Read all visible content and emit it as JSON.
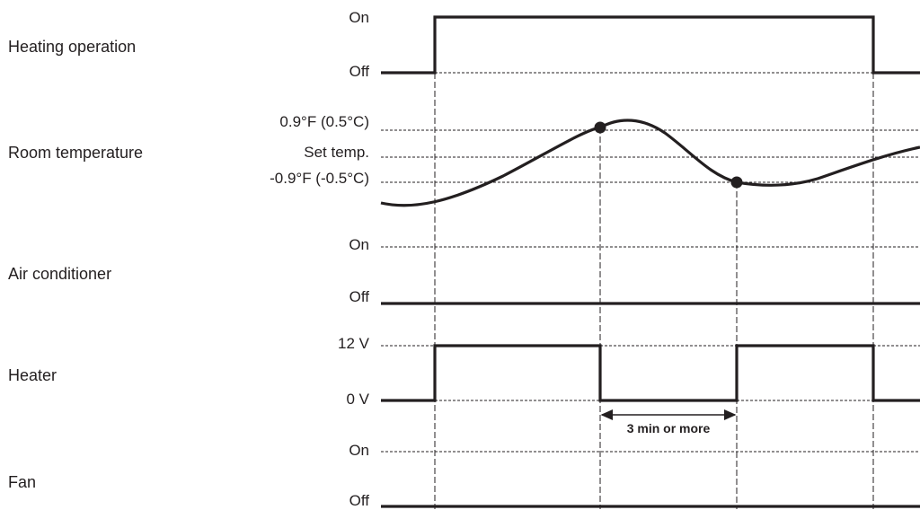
{
  "rows": {
    "heating_operation": {
      "label": "Heating operation",
      "levels": {
        "high": "On",
        "low": "Off"
      }
    },
    "room_temperature": {
      "label": "Room temperature",
      "levels": {
        "upper": "0.9°F (0.5°C)",
        "set": "Set temp.",
        "lower": "-0.9°F (-0.5°C)"
      }
    },
    "air_conditioner": {
      "label": "Air conditioner",
      "levels": {
        "high": "On",
        "low": "Off"
      }
    },
    "heater": {
      "label": "Heater",
      "levels": {
        "high": "12 V",
        "low": "0 V"
      }
    },
    "fan": {
      "label": "Fan",
      "levels": {
        "high": "On",
        "low": "Off"
      }
    }
  },
  "annotation": {
    "interval": "3 min or more"
  }
}
